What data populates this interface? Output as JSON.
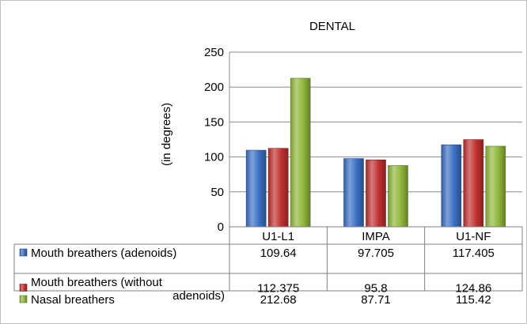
{
  "chart_data": {
    "type": "bar",
    "title": "DENTAL",
    "ylabel": "(in degrees)",
    "xlabel": "",
    "ylim": [
      0,
      250
    ],
    "yticks": [
      0,
      50,
      100,
      150,
      200,
      250
    ],
    "grid": true,
    "legend": "data-table-left",
    "categories": [
      "U1-L1",
      "IMPA",
      "U1-NF"
    ],
    "series": [
      {
        "name": "Mouth breathers (adenoids)",
        "name_lines": [
          "Mouth breathers (adenoids)"
        ],
        "color": "#3a6fc4",
        "values": [
          109.64,
          97.705,
          117.405
        ],
        "labels": [
          "109.64",
          "97.705",
          "117.405"
        ]
      },
      {
        "name": "Mouth breathers (without adenoids)",
        "name_lines": [
          "Mouth breathers (without",
          "adenoids)"
        ],
        "color": "#c0302f",
        "values": [
          112.375,
          95.8,
          124.86
        ],
        "labels": [
          "112.375",
          "95.8",
          "124.86"
        ]
      },
      {
        "name": "Nasal breathers",
        "name_lines": [
          "Nasal breathers"
        ],
        "color": "#8fb73a",
        "values": [
          212.68,
          87.71,
          115.42
        ],
        "labels": [
          "212.68",
          "87.71",
          "115.42"
        ]
      }
    ]
  }
}
